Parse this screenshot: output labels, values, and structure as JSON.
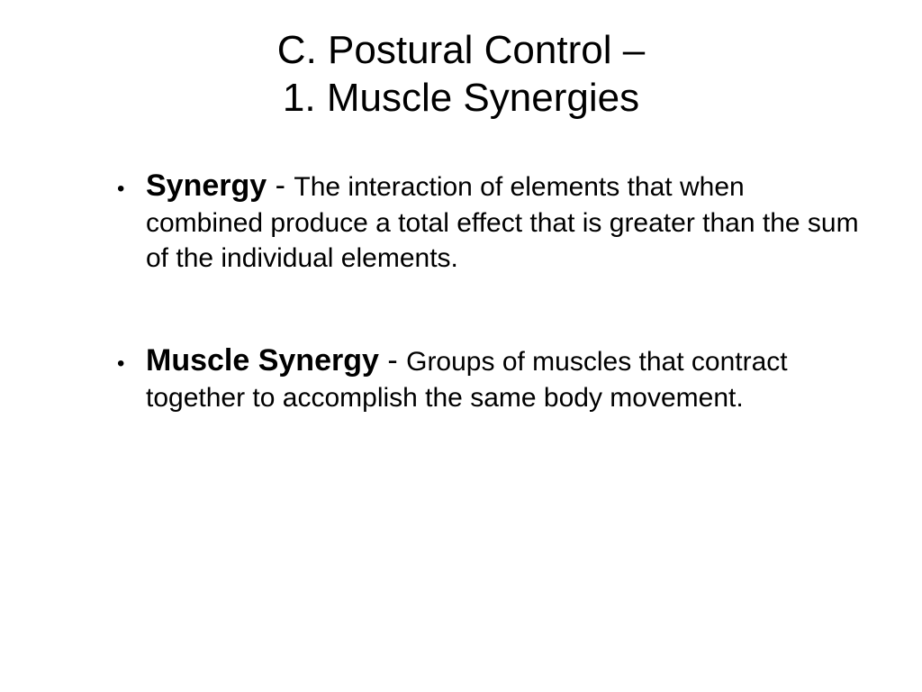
{
  "title": {
    "line1": "C.  Postural Control –",
    "line2": "1.  Muscle Synergies"
  },
  "bullets": [
    {
      "term": "Synergy",
      "separator": " - ",
      "definition": "The interaction of elements that when combined produce a total effect that is greater than the sum of the individual elements."
    },
    {
      "term": "Muscle Synergy",
      "separator": " - ",
      "definition": "Groups of muscles that contract together to accomplish the same body movement."
    }
  ],
  "colors": {
    "background": "#ffffff",
    "text": "#000000"
  },
  "typography": {
    "title_fontsize": 44,
    "term_fontsize": 34,
    "definition_fontsize": 30,
    "font_family": "Arial"
  }
}
